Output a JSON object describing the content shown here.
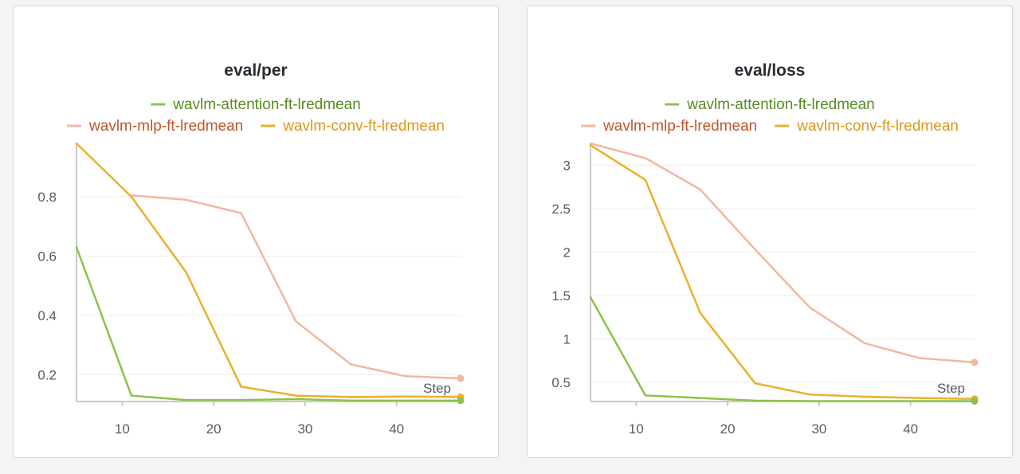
{
  "chart_data": [
    {
      "type": "line",
      "title": "eval/per",
      "xlabel": "Step",
      "ylabel": "",
      "xlim": [
        5,
        47
      ],
      "ylim": [
        0.11,
        0.98
      ],
      "x_ticks": [
        10,
        20,
        30,
        40
      ],
      "y_ticks": [
        0.2,
        0.4,
        0.6,
        0.8
      ],
      "y_tick_labels": [
        "0.2",
        "0.4",
        "0.6",
        "0.8"
      ],
      "grid": true,
      "legend_position": "top",
      "series": [
        {
          "name": "wavlm-attention-ft-lredmean",
          "color": "#8bc34a",
          "label_color": "#5a8a1f",
          "x": [
            5,
            11,
            17,
            23,
            29,
            35,
            41,
            47
          ],
          "y": [
            0.63,
            0.13,
            0.115,
            0.115,
            0.118,
            0.113,
            0.113,
            0.113
          ]
        },
        {
          "name": "wavlm-mlp-ft-lredmean",
          "color": "#f0b8a0",
          "label_color": "#c0562a",
          "x": [
            11,
            17,
            23,
            29,
            35,
            41,
            47
          ],
          "y": [
            0.805,
            0.79,
            0.745,
            0.38,
            0.235,
            0.195,
            0.188
          ]
        },
        {
          "name": "wavlm-conv-ft-lredmean",
          "color": "#ebb02c",
          "label_color": "#e0951c",
          "x": [
            5,
            11,
            17,
            23,
            29,
            35,
            41,
            47
          ],
          "y": [
            0.98,
            0.8,
            0.545,
            0.16,
            0.13,
            0.125,
            0.127,
            0.125
          ]
        }
      ]
    },
    {
      "type": "line",
      "title": "eval/loss",
      "xlabel": "Step",
      "ylabel": "",
      "xlim": [
        5,
        47
      ],
      "ylim": [
        0.28,
        3.25
      ],
      "x_ticks": [
        10,
        20,
        30,
        40
      ],
      "y_ticks": [
        0.5,
        1,
        1.5,
        2,
        2.5,
        3
      ],
      "y_tick_labels": [
        "0.5",
        "1",
        "1.5",
        "2",
        "2.5",
        "3"
      ],
      "grid": true,
      "legend_position": "top",
      "series": [
        {
          "name": "wavlm-attention-ft-lredmean",
          "color": "#8bc34a",
          "label_color": "#5a8a1f",
          "x": [
            5,
            11,
            17,
            23,
            29,
            35,
            41,
            47
          ],
          "y": [
            1.48,
            0.35,
            0.32,
            0.29,
            0.285,
            0.285,
            0.285,
            0.285
          ]
        },
        {
          "name": "wavlm-mlp-ft-lredmean",
          "color": "#f0b8a0",
          "label_color": "#c0562a",
          "x": [
            5,
            11,
            17,
            23,
            29,
            35,
            41,
            47
          ],
          "y": [
            3.25,
            3.08,
            2.72,
            2.03,
            1.36,
            0.95,
            0.78,
            0.73
          ]
        },
        {
          "name": "wavlm-conv-ft-lredmean",
          "color": "#ebb02c",
          "label_color": "#e0951c",
          "x": [
            5,
            11,
            17,
            23,
            29,
            35,
            41,
            47
          ],
          "y": [
            3.23,
            2.83,
            1.3,
            0.49,
            0.36,
            0.335,
            0.32,
            0.31
          ]
        }
      ]
    }
  ]
}
